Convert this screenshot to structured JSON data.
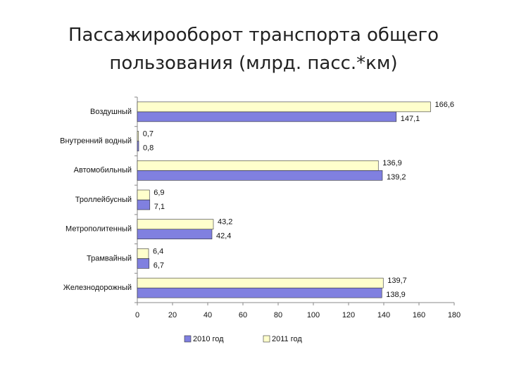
{
  "chart_data": {
    "type": "bar",
    "orientation": "horizontal",
    "title": "Пассажирооборот транспорта общего пользования (млрд. пасс.*км)",
    "categories": [
      "Воздушный",
      "Внутренний водный",
      "Автомобильный",
      "Троллейбусный",
      "Метрополитенный",
      "Трамвайный",
      "Железнодорожный"
    ],
    "series": [
      {
        "name": "2010 год",
        "color": "#8080e0",
        "values": [
          147.1,
          0.8,
          139.2,
          7.1,
          42.4,
          6.7,
          138.9
        ],
        "value_labels": [
          "147,1",
          "0,8",
          "139,2",
          "7,1",
          "42,4",
          "6,7",
          "138,9"
        ]
      },
      {
        "name": "2011 год",
        "color": "#ffffcc",
        "values": [
          166.6,
          0.7,
          136.9,
          6.9,
          43.2,
          6.4,
          139.7
        ],
        "value_labels": [
          "166,6",
          "0,7",
          "136,9",
          "6,9",
          "43,2",
          "6,4",
          "139,7"
        ]
      }
    ],
    "xlim": [
      0,
      180
    ],
    "xticks": [
      0,
      20,
      40,
      60,
      80,
      100,
      120,
      140,
      160,
      180
    ],
    "grid": false,
    "legend": "bottom"
  }
}
